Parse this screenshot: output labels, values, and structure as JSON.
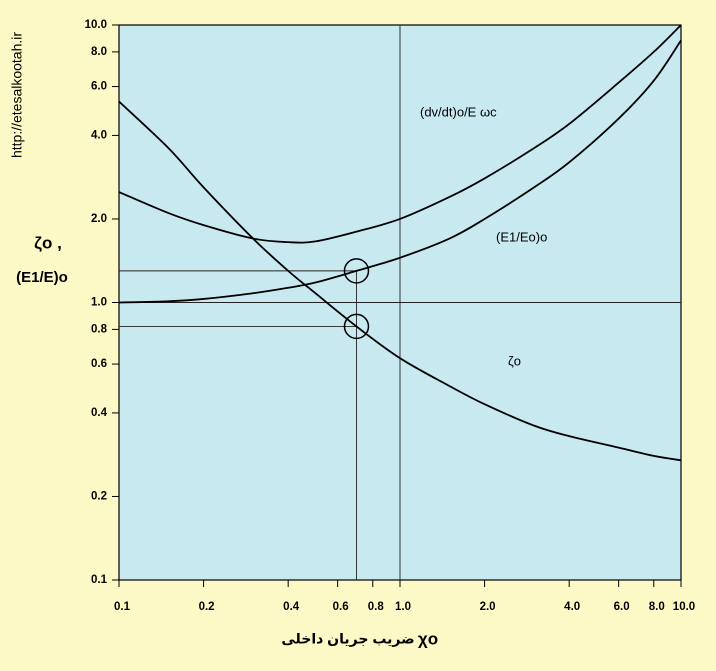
{
  "chart_data": {
    "type": "line",
    "watermark": "http://etesalkootah.ir",
    "y_label": [
      "ζo ,",
      "(E1/E)o"
    ],
    "x_label": "ضریب جریان داخلی",
    "x_symbol": "χo",
    "xscale": "log",
    "yscale": "log",
    "xlim": [
      0.1,
      10
    ],
    "ylim": [
      0.1,
      10
    ],
    "xticks": [
      0.1,
      0.2,
      0.4,
      0.6,
      0.8,
      {
        "value": 1,
        "label": "1.0"
      },
      {
        "value": 2,
        "label": "2.0"
      },
      {
        "value": 4,
        "label": "4.0"
      },
      {
        "value": 6,
        "label": "6.0"
      },
      {
        "value": 8,
        "label": "8.0"
      },
      {
        "value": 10,
        "label": "10.0"
      }
    ],
    "yticks": [
      0.1,
      0.2,
      0.4,
      0.6,
      0.8,
      {
        "value": 1,
        "label": "1.0"
      },
      {
        "value": 2,
        "label": "2.0"
      },
      {
        "value": 4,
        "label": "4.0"
      },
      {
        "value": 6,
        "label": "6.0"
      },
      {
        "value": 8,
        "label": "8.0"
      },
      {
        "value": 10,
        "label": "10.0"
      }
    ],
    "x": [
      0.1,
      0.15,
      0.2,
      0.3,
      0.4,
      0.5,
      0.7,
      1,
      1.5,
      2,
      3,
      4,
      6,
      8,
      10
    ],
    "series": [
      {
        "name": "(dv/dt)o/E ωc",
        "color": "#000000",
        "values": [
          2.5,
          2.1,
          1.9,
          1.7,
          1.65,
          1.66,
          1.8,
          2.0,
          2.4,
          2.8,
          3.6,
          4.4,
          6.2,
          8.0,
          10
        ]
      },
      {
        "name": "(E1/Eo)o",
        "color": "#000000",
        "values": [
          1.0,
          1.01,
          1.03,
          1.08,
          1.13,
          1.18,
          1.3,
          1.45,
          1.7,
          2.0,
          2.6,
          3.2,
          4.6,
          6.3,
          8.8
        ]
      },
      {
        "name": "ζo",
        "color": "#000000",
        "values": [
          5.3,
          3.6,
          2.6,
          1.7,
          1.3,
          1.08,
          0.82,
          0.63,
          0.5,
          0.43,
          0.36,
          0.33,
          0.3,
          0.28,
          0.27
        ]
      }
    ],
    "hlines": [
      {
        "y": 1.3,
        "x_end": 0.7
      },
      {
        "y": 1.0,
        "x_end": 10
      },
      {
        "y": 0.82,
        "x_end": 0.7
      }
    ],
    "vlines": [
      {
        "x": 0.7,
        "y_end": 1.3
      },
      {
        "x": 1.0,
        "y_end": 10
      }
    ],
    "markers": [
      {
        "x": 0.7,
        "y": 1.3
      },
      {
        "x": 0.7,
        "y": 0.82
      }
    ],
    "plot_color": "#c9e9f1"
  }
}
